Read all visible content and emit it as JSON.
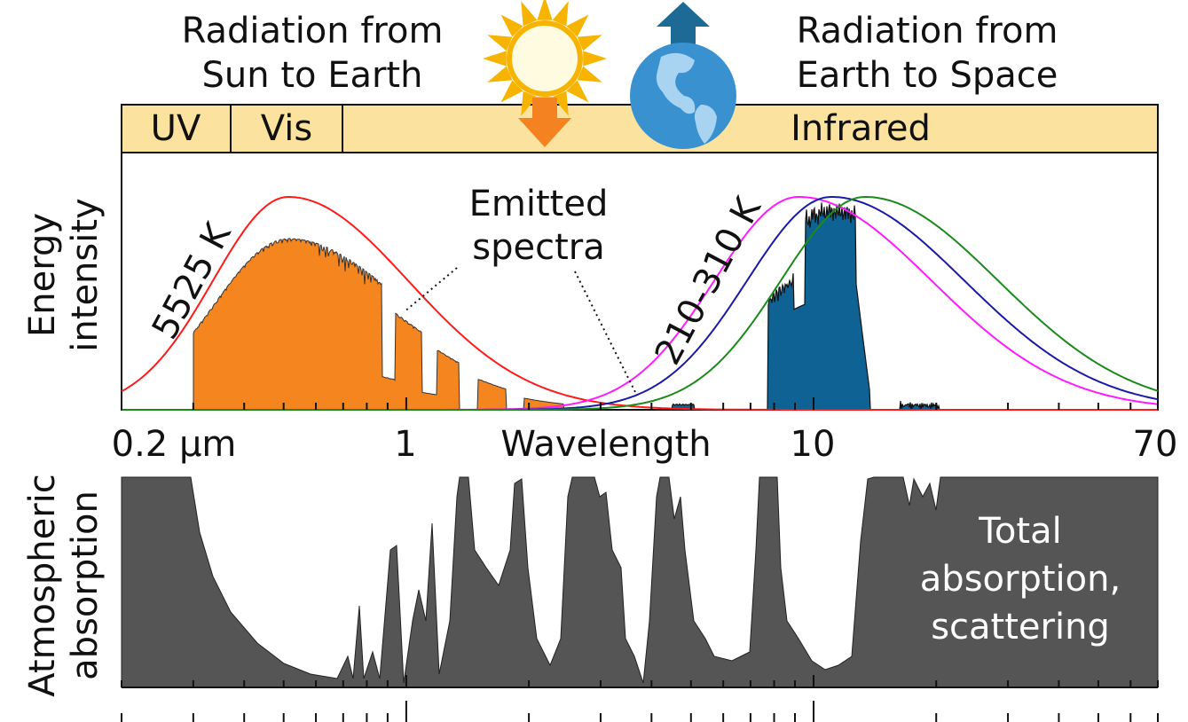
{
  "header": {
    "left": [
      "Radiation from",
      "Sun to Earth"
    ],
    "right": [
      "Radiation from",
      "Earth to Space"
    ]
  },
  "bands": [
    "UV",
    "Vis",
    "Infrared"
  ],
  "energy_panel": {
    "y_label": [
      "Energy",
      "intensity"
    ],
    "sun_curve_label": "5525 K",
    "earth_curve_label": "210-310 K",
    "emitted_label": [
      "Emitted",
      "spectra"
    ]
  },
  "wavelength_axis": {
    "ticks": [
      "0.2 µm",
      "1",
      "10",
      "70"
    ],
    "title": "Wavelength"
  },
  "absorption_panel": {
    "y_label": [
      "Atmospheric",
      "absorption"
    ],
    "label": [
      "Total",
      "absorption,",
      "scattering"
    ]
  }
}
